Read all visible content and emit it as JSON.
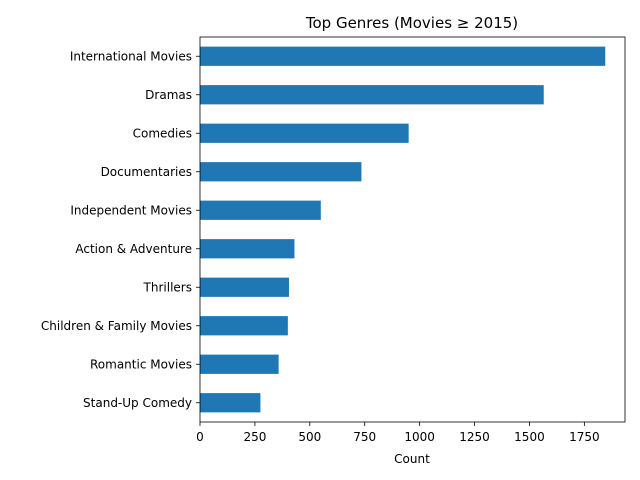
{
  "chart_data": {
    "type": "bar",
    "orientation": "horizontal",
    "title": "Top Genres (Movies ≥ 2015)",
    "xlabel": "Count",
    "ylabel": "",
    "categories": [
      "International Movies",
      "Dramas",
      "Comedies",
      "Documentaries",
      "Independent Movies",
      "Action & Adventure",
      "Thrillers",
      "Children & Family Movies",
      "Romantic Movies",
      "Stand-Up Comedy"
    ],
    "values": [
      1845,
      1565,
      950,
      735,
      550,
      430,
      405,
      400,
      358,
      275
    ],
    "xlim": [
      0,
      1935
    ],
    "xticks": [
      0,
      250,
      500,
      750,
      1000,
      1250,
      1500,
      1750
    ],
    "grid": false,
    "bar_color": "#1f77b4"
  }
}
